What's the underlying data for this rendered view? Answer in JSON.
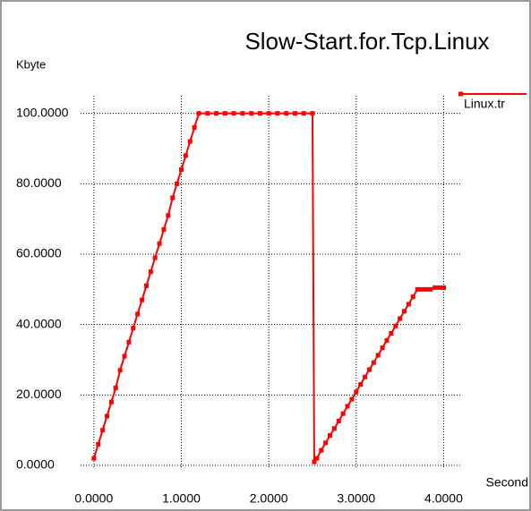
{
  "chart_data": {
    "type": "line",
    "title": "Slow-Start.for.Tcp.Linux",
    "y_label": "Kbyte",
    "x_label": "Second",
    "x": [
      0,
      0.05,
      0.1,
      0.15,
      0.2,
      0.25,
      0.3,
      0.35,
      0.4,
      0.45,
      0.5,
      0.55,
      0.6,
      0.65,
      0.7,
      0.75,
      0.8,
      0.85,
      0.9,
      0.95,
      1.0,
      1.05,
      1.1,
      1.15,
      1.2,
      1.3,
      1.4,
      1.5,
      1.6,
      1.7,
      1.8,
      1.9,
      2.0,
      2.1,
      2.2,
      2.3,
      2.4,
      2.5,
      2.52,
      2.55,
      2.6,
      2.65,
      2.7,
      2.75,
      2.8,
      2.85,
      2.9,
      2.95,
      3.0,
      3.05,
      3.1,
      3.15,
      3.2,
      3.25,
      3.3,
      3.35,
      3.4,
      3.45,
      3.5,
      3.55,
      3.6,
      3.65,
      3.7,
      3.75,
      3.8,
      3.85,
      3.9,
      3.95,
      4.0
    ],
    "series": [
      {
        "name": "Linux.tr",
        "color": "#ff0000",
        "values": [
          2,
          6,
          10,
          14,
          18,
          22,
          27,
          31,
          35,
          39,
          43,
          47,
          51,
          55,
          59,
          63,
          67,
          71,
          76,
          80,
          84,
          88,
          92,
          96,
          100,
          100,
          100,
          100,
          100,
          100,
          100,
          100,
          100,
          100,
          100,
          100,
          100,
          100,
          1,
          2,
          4.3,
          6.4,
          8.5,
          10.5,
          12.6,
          14.7,
          16.8,
          18.8,
          20.9,
          23,
          25.1,
          27.2,
          29.2,
          31.3,
          33.4,
          35.5,
          37.5,
          39.6,
          41.7,
          43.8,
          45.8,
          47.9,
          50,
          50,
          50,
          50,
          50.5,
          50.5,
          50.5
        ]
      }
    ],
    "xlim": [
      -0.92,
      4.2
    ],
    "ylim": [
      -0.5,
      105
    ],
    "xticks": [
      {
        "value": 0,
        "label": "0.0000"
      },
      {
        "value": 1,
        "label": "1.0000"
      },
      {
        "value": 2,
        "label": "2.0000"
      },
      {
        "value": 3,
        "label": "3.0000"
      },
      {
        "value": 4,
        "label": "4.0000"
      }
    ],
    "yticks": [
      {
        "value": 0,
        "label": "0.0000"
      },
      {
        "value": 20,
        "label": "20.0000"
      },
      {
        "value": 40,
        "label": "40.0000"
      },
      {
        "value": 60,
        "label": "60.0000"
      },
      {
        "value": 80,
        "label": "80.0000"
      },
      {
        "value": 100,
        "label": "100.0000"
      }
    ],
    "grid": true,
    "legend": "top-right"
  }
}
